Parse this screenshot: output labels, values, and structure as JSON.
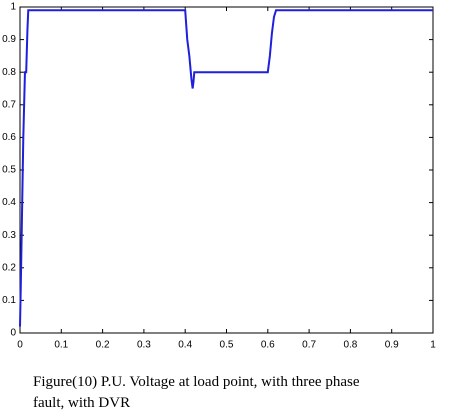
{
  "chart_data": {
    "type": "line",
    "caption": "Figure(10) P.U. Voltage at load point, with three phase fault, with DVR",
    "x": [
      0,
      0.002,
      0.004,
      0.006,
      0.008,
      0.01,
      0.012,
      0.015,
      0.018,
      0.02,
      0.4,
      0.405,
      0.41,
      0.415,
      0.418,
      0.42,
      0.422,
      0.6,
      0.605,
      0.61,
      0.615,
      0.62,
      1
    ],
    "series": [
      {
        "color": "#1f1fdc",
        "values": [
          0.02,
          0.15,
          0.3,
          0.45,
          0.6,
          0.7,
          0.8,
          0.8,
          0.93,
          0.99,
          0.99,
          0.9,
          0.85,
          0.78,
          0.75,
          0.77,
          0.8,
          0.8,
          0.85,
          0.92,
          0.97,
          0.99,
          0.99
        ]
      }
    ],
    "xlim": [
      0,
      1
    ],
    "xticks": [
      0,
      0.1,
      0.2,
      0.3,
      0.4,
      0.5,
      0.6,
      0.7,
      0.8,
      0.9,
      1
    ],
    "ylim": [
      0,
      1
    ],
    "yticks": [
      0,
      0.1,
      0.2,
      0.3,
      0.4,
      0.5,
      0.6,
      0.7,
      0.8,
      0.9,
      1
    ],
    "grid": false
  }
}
